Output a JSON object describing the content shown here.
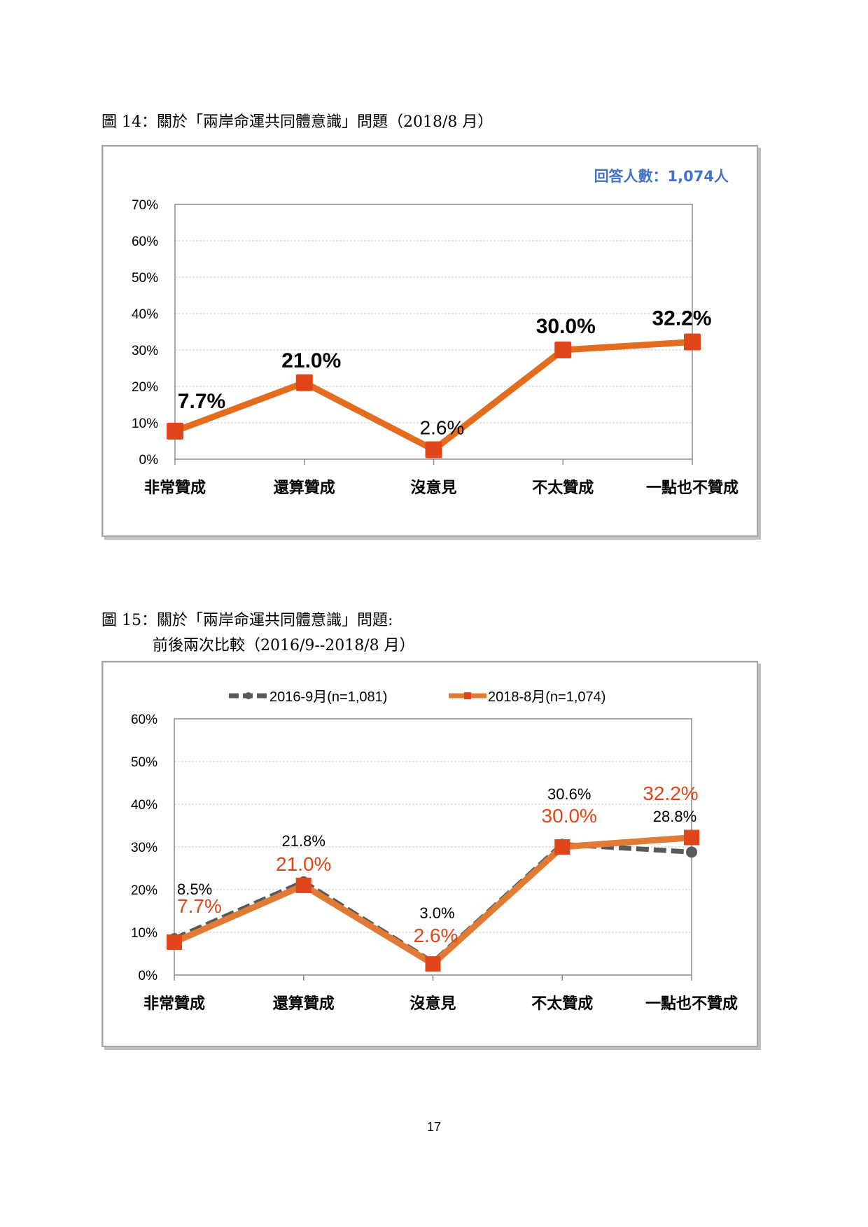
{
  "figure14": {
    "title": "圖 14：關於「兩岸命運共同體意識」問題（2018/8 月）"
  },
  "figure15": {
    "title": "圖 15：關於「兩岸命運共同體意識」問題:",
    "subtitle": "前後兩次比較（2016/9--2018/8 月）"
  },
  "page_number": "17",
  "colors": {
    "orange": "#E46C1F",
    "marker": "#E0461A",
    "gray": "#595959",
    "label_red": "#E0461A",
    "note_blue": "#4472C4",
    "grid": "#c8c8c8"
  },
  "chart_data": [
    {
      "type": "line",
      "note": "回答人數：1,074人",
      "categories": [
        "非常贊成",
        "還算贊成",
        "沒意見",
        "不太贊成",
        "一點也不贊成"
      ],
      "series": [
        {
          "values": [
            7.7,
            21.0,
            2.6,
            30.0,
            32.2
          ]
        }
      ],
      "data_labels": [
        "7.7%",
        "21.0%",
        "2.6%",
        "30.0%",
        "32.2%"
      ],
      "ylim": [
        0,
        70
      ],
      "yticks": [
        "0%",
        "10%",
        "20%",
        "30%",
        "40%",
        "50%",
        "60%",
        "70%"
      ],
      "grid": true
    },
    {
      "type": "line",
      "categories": [
        "非常贊成",
        "還算贊成",
        "沒意見",
        "不太贊成",
        "一點也不贊成"
      ],
      "series": [
        {
          "name": "2016-9月(n=1,081)",
          "values": [
            8.5,
            21.8,
            3.0,
            30.6,
            28.8
          ],
          "style": "dashed",
          "color": "#595959",
          "labels": [
            "8.5%",
            "21.8%",
            "3.0%",
            "30.6%",
            "28.8%"
          ]
        },
        {
          "name": "2018-8月(n=1,074)",
          "values": [
            7.7,
            21.0,
            2.6,
            30.0,
            32.2
          ],
          "style": "solid",
          "color": "#E07A34",
          "labels": [
            "7.7%",
            "21.0%",
            "2.6%",
            "30.0%",
            "32.2%"
          ]
        }
      ],
      "ylim": [
        0,
        60
      ],
      "yticks": [
        "0%",
        "10%",
        "20%",
        "30%",
        "40%",
        "50%",
        "60%"
      ],
      "legend": "top",
      "grid": true
    }
  ]
}
